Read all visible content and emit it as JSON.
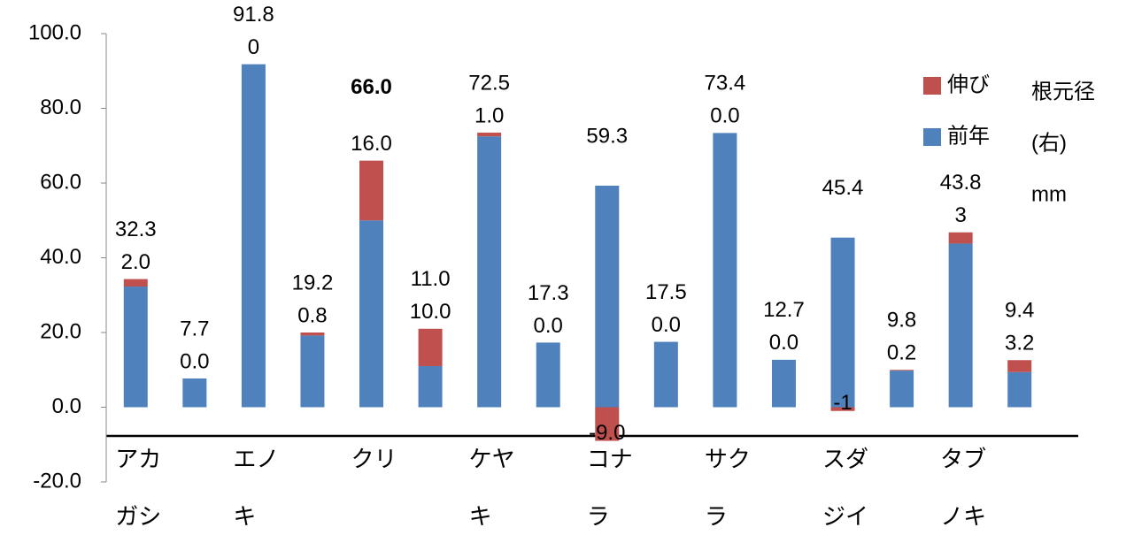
{
  "chart_data": {
    "type": "stacked-bar",
    "categories": [
      "アカガシ",
      null,
      "エノキ",
      null,
      "クリ",
      null,
      "ケヤキ",
      null,
      "コナラ",
      null,
      "サクラ",
      null,
      "スダジイ",
      null,
      "タブノキ",
      null
    ],
    "series": [
      {
        "name": "前年",
        "color": "#4f81bd",
        "values": [
          32.3,
          7.7,
          91.8,
          19.2,
          50,
          11.0,
          72.5,
          17.3,
          59.3,
          17.5,
          73.4,
          12.7,
          45.4,
          9.8,
          43.8,
          9.4
        ],
        "value_labels": [
          "32.3",
          "7.7",
          "91.8",
          "19.2",
          null,
          "11.0",
          "72.5",
          "17.3",
          "59.3",
          "17.5",
          "73.4",
          "12.7",
          "45.4",
          "9.8",
          "43.8",
          "9.4"
        ]
      },
      {
        "name": "伸び",
        "color": "#c0504d",
        "values": [
          2.0,
          0.0,
          0,
          0.8,
          16.0,
          10.0,
          1.0,
          0.0,
          -9.0,
          0.0,
          0.0,
          0.0,
          -1,
          0.2,
          3,
          3.2
        ],
        "value_labels": [
          "2.0",
          "0.0",
          "0",
          "0.8",
          "16.0",
          "10.0",
          "1.0",
          "0.0",
          "-9.0",
          "0.0",
          "0.0",
          "0.0",
          "-1",
          "0.2",
          "3",
          "3.2"
        ]
      }
    ],
    "annotations": [
      {
        "index": 4,
        "value": 66.0,
        "label": "66.0"
      }
    ],
    "note": [
      "根元径",
      "(右)",
      "mm"
    ],
    "legend_order": [
      1,
      0
    ],
    "ylim": [
      -20,
      100
    ],
    "yticks": [
      {
        "value": -20,
        "label": "-20.0"
      },
      {
        "value": 0,
        "label": "0.0"
      },
      {
        "value": 20,
        "label": "20.0"
      },
      {
        "value": 40,
        "label": "40.0"
      },
      {
        "value": 60,
        "label": "60.0"
      },
      {
        "value": 80,
        "label": "80.0"
      },
      {
        "value": 100,
        "label": "100.0"
      }
    ]
  }
}
